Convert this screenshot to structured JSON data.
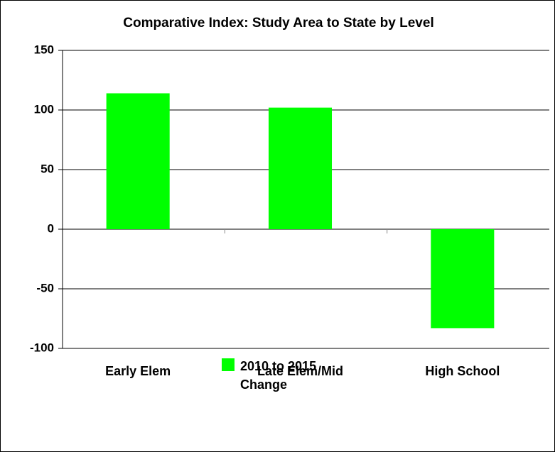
{
  "chart_data": {
    "type": "bar",
    "title": "Comparative Index: Study Area to State by Level",
    "categories": [
      "Early Elem",
      "Late Elem/Mid",
      "High School"
    ],
    "series": [
      {
        "name": "2010 to 2015 Change",
        "color": "#00ff00",
        "values": [
          114,
          102,
          -83
        ]
      }
    ],
    "ylim": [
      -100,
      150
    ],
    "yticks": [
      -100,
      -50,
      0,
      50,
      100,
      150
    ],
    "grid": true,
    "legend": "bottom"
  }
}
